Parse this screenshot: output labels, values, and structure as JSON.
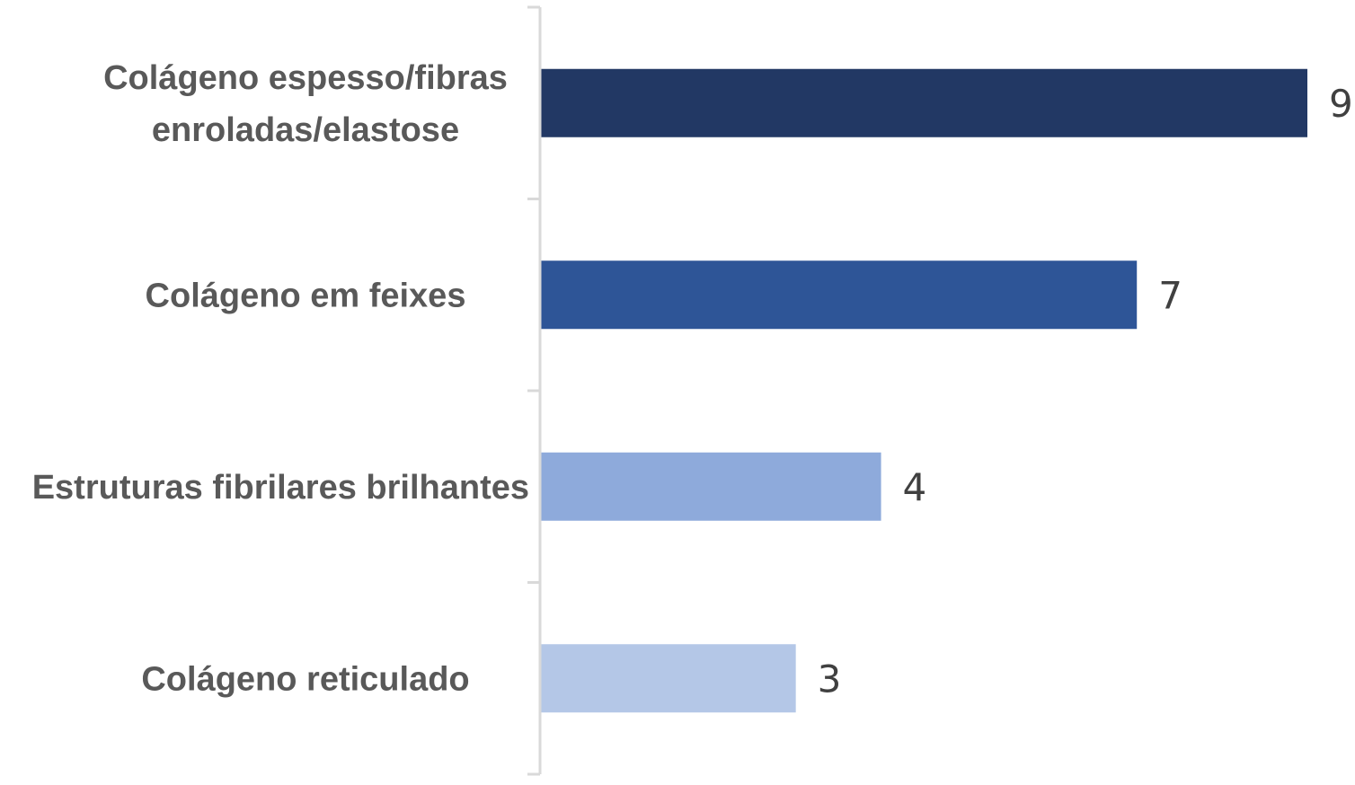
{
  "chart_data": {
    "type": "bar",
    "orientation": "horizontal",
    "categories": [
      [
        "Colágeno espesso/fibras",
        "enroladas/elastose"
      ],
      [
        "Colágeno em feixes"
      ],
      [
        "Estruturas fibrilares brilhantes"
      ],
      [
        "Colágeno reticulado"
      ]
    ],
    "values": [
      9,
      7,
      4,
      3
    ],
    "value_labels": [
      "9",
      "7",
      "4",
      "3"
    ],
    "colors": [
      "#223864",
      "#2e5597",
      "#8eaadb",
      "#b4c7e7"
    ],
    "axis_color": "#d9d9d9",
    "xlim": [
      0,
      9
    ],
    "title": "",
    "xlabel": "",
    "ylabel": "",
    "grid": false,
    "legend": "none",
    "data_labels": true
  }
}
